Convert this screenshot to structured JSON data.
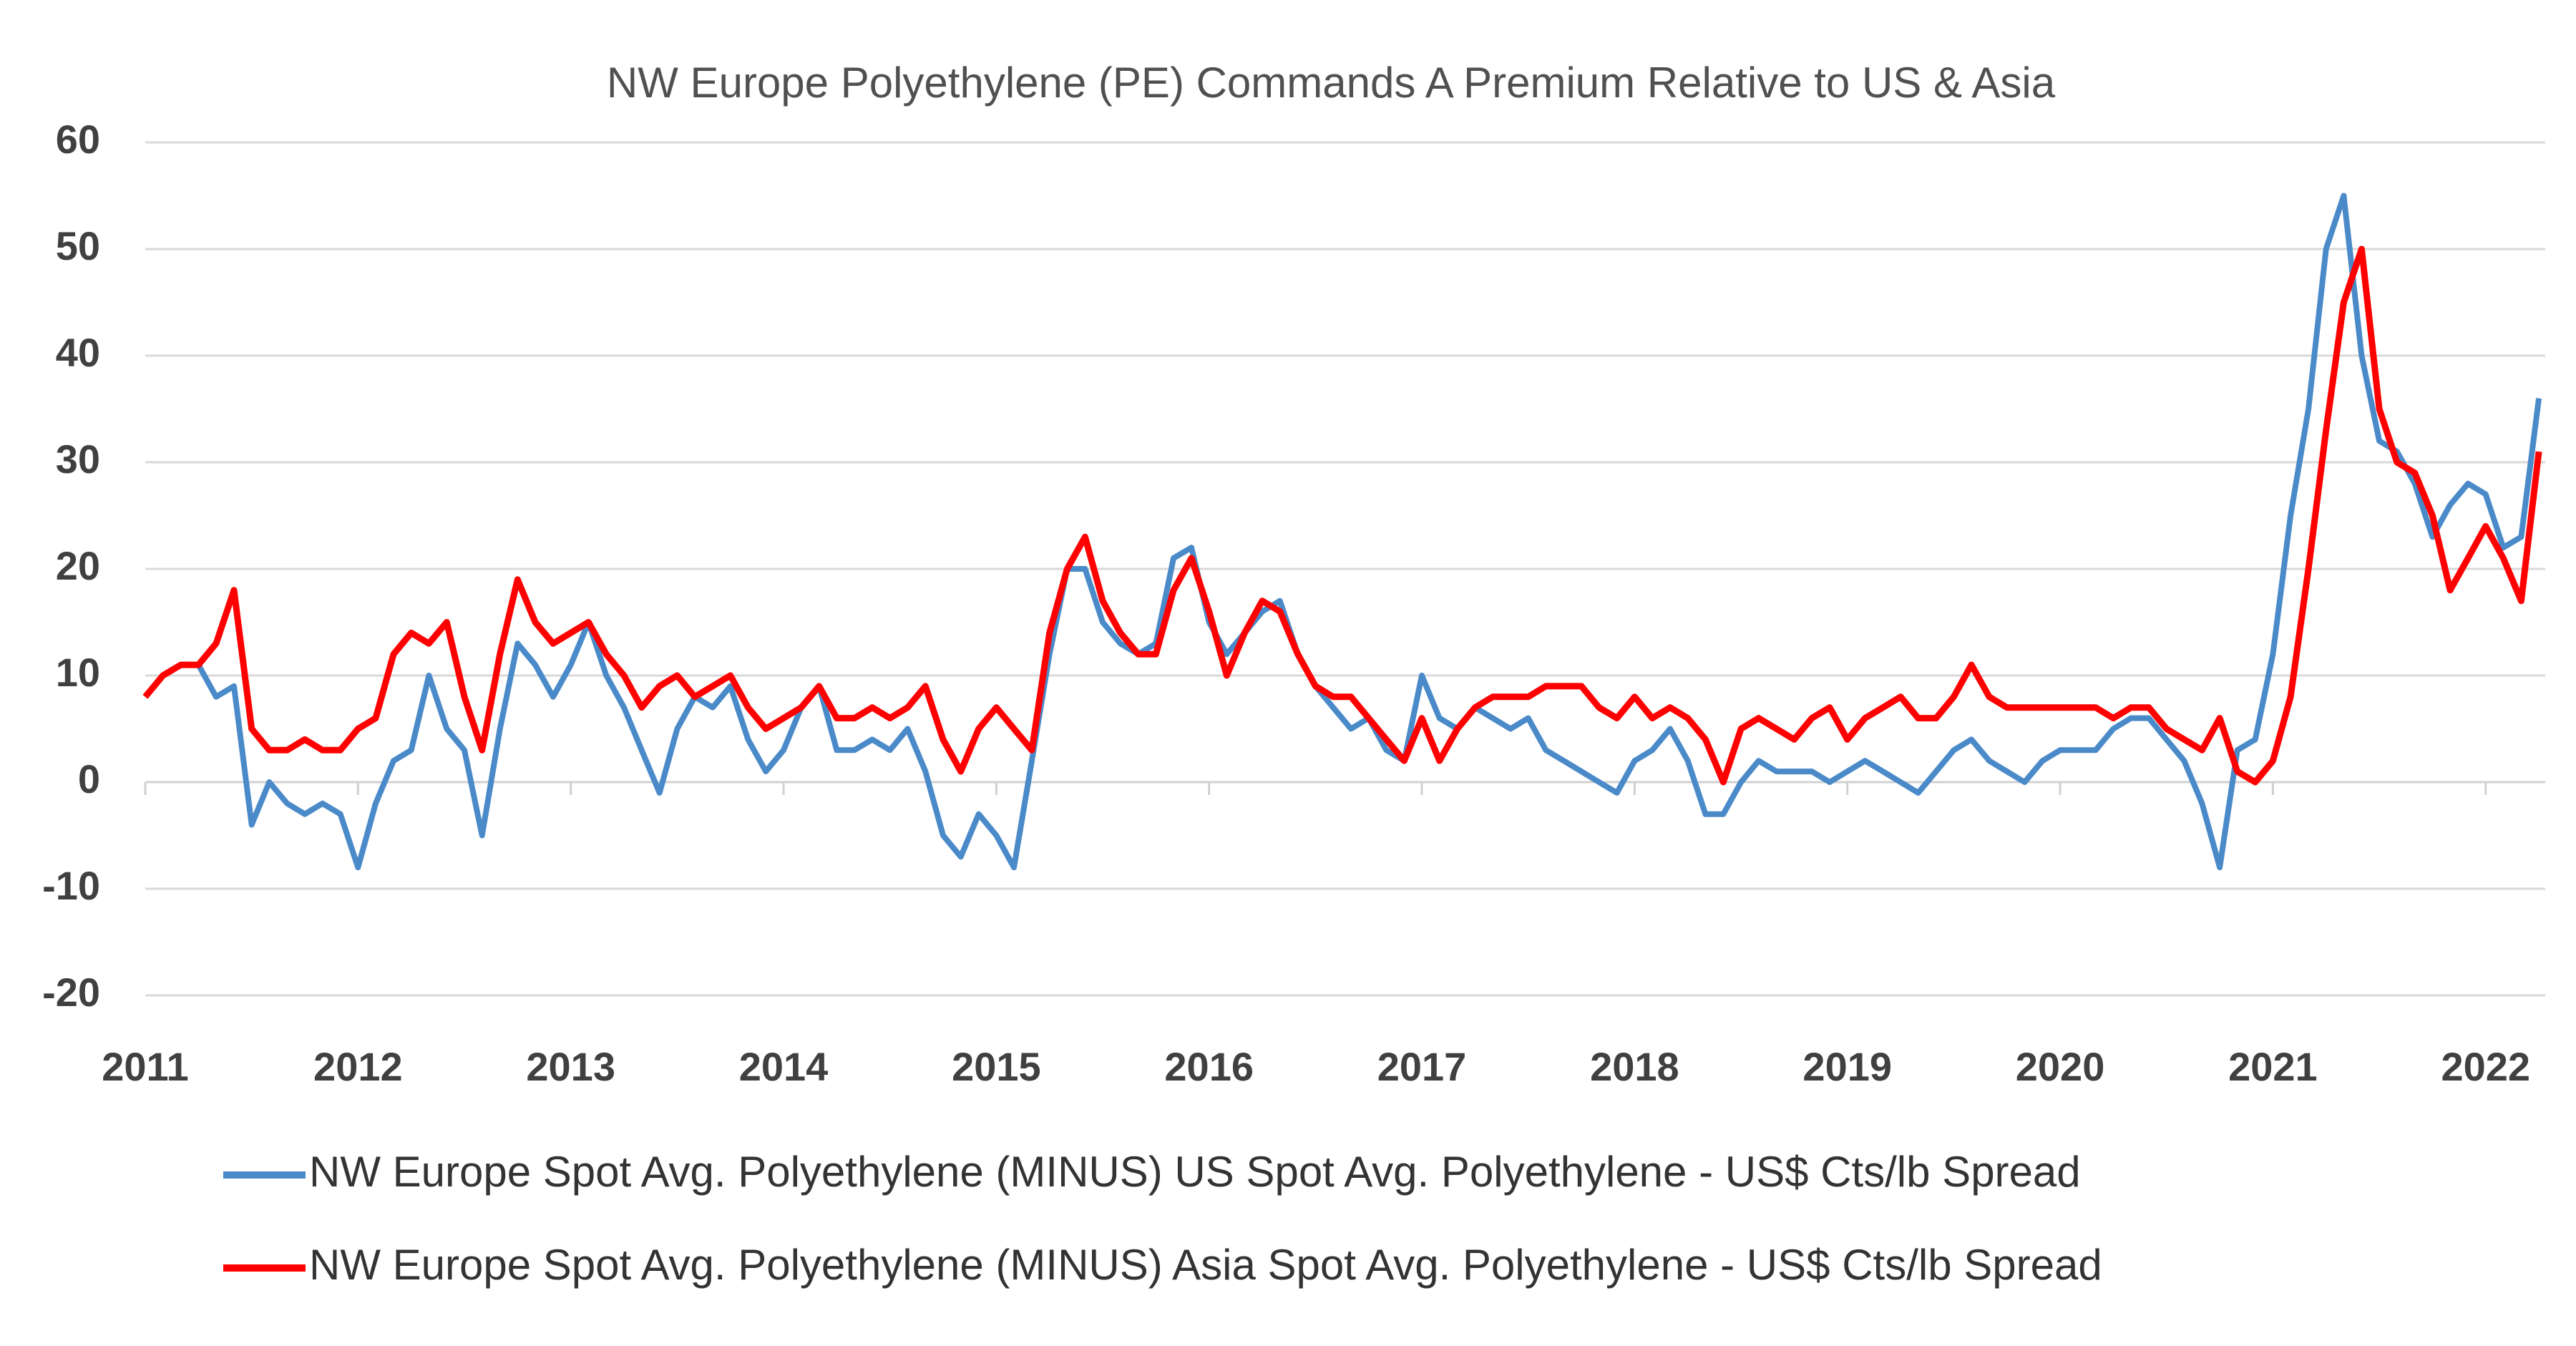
{
  "chart_data": {
    "type": "line",
    "title": "NW Europe Polyethylene (PE) Commands A Premium Relative to US & Asia",
    "x": [
      2011,
      2011.083,
      2011.167,
      2011.25,
      2011.333,
      2011.417,
      2011.5,
      2011.583,
      2011.667,
      2011.75,
      2011.833,
      2011.917,
      2012,
      2012.083,
      2012.167,
      2012.25,
      2012.333,
      2012.417,
      2012.5,
      2012.583,
      2012.667,
      2012.75,
      2012.833,
      2012.917,
      2013,
      2013.083,
      2013.167,
      2013.25,
      2013.333,
      2013.417,
      2013.5,
      2013.583,
      2013.667,
      2013.75,
      2013.833,
      2013.917,
      2014,
      2014.083,
      2014.167,
      2014.25,
      2014.333,
      2014.417,
      2014.5,
      2014.583,
      2014.667,
      2014.75,
      2014.833,
      2014.917,
      2015,
      2015.083,
      2015.167,
      2015.25,
      2015.333,
      2015.417,
      2015.5,
      2015.583,
      2015.667,
      2015.75,
      2015.833,
      2015.917,
      2016,
      2016.083,
      2016.167,
      2016.25,
      2016.333,
      2016.417,
      2016.5,
      2016.583,
      2016.667,
      2016.75,
      2016.833,
      2016.917,
      2017,
      2017.083,
      2017.167,
      2017.25,
      2017.333,
      2017.417,
      2017.5,
      2017.583,
      2017.667,
      2017.75,
      2017.833,
      2017.917,
      2018,
      2018.083,
      2018.167,
      2018.25,
      2018.333,
      2018.417,
      2018.5,
      2018.583,
      2018.667,
      2018.75,
      2018.833,
      2018.917,
      2019,
      2019.083,
      2019.167,
      2019.25,
      2019.333,
      2019.417,
      2019.5,
      2019.583,
      2019.667,
      2019.75,
      2019.833,
      2019.917,
      2020,
      2020.083,
      2020.167,
      2020.25,
      2020.333,
      2020.417,
      2020.5,
      2020.583,
      2020.667,
      2020.75,
      2020.833,
      2020.917,
      2021,
      2021.083,
      2021.167,
      2021.25,
      2021.333,
      2021.417,
      2021.5,
      2021.583,
      2021.667,
      2021.75,
      2021.833,
      2021.917,
      2022,
      2022.083,
      2022.167,
      2022.25
    ],
    "series": [
      {
        "name": "NW Europe Spot Avg. Polyethylene (MINUS) US Spot Avg. Polyethylene - US$ Cts/lb Spread",
        "color": "#4a8ac9",
        "values": [
          8,
          10,
          11,
          11,
          8,
          9,
          -4,
          0,
          -2,
          -3,
          -2,
          -3,
          -8,
          -2,
          2,
          3,
          10,
          5,
          3,
          -5,
          5,
          13,
          11,
          8,
          11,
          15,
          10,
          7,
          3,
          -1,
          5,
          8,
          7,
          9,
          4,
          1,
          3,
          7,
          9,
          3,
          3,
          4,
          3,
          5,
          1,
          -5,
          -7,
          -3,
          -5,
          -8,
          2,
          12,
          20,
          20,
          15,
          13,
          12,
          13,
          21,
          22,
          15,
          12,
          14,
          16,
          17,
          12,
          9,
          7,
          5,
          6,
          3,
          2,
          10,
          6,
          5,
          7,
          6,
          5,
          6,
          3,
          2,
          1,
          0,
          -1,
          2,
          3,
          5,
          2,
          -3,
          -3,
          0,
          2,
          1,
          1,
          1,
          0,
          1,
          2,
          1,
          0,
          -1,
          1,
          3,
          4,
          2,
          1,
          0,
          2,
          3,
          3,
          3,
          5,
          6,
          6,
          4,
          2,
          -2,
          -8,
          3,
          4,
          12,
          25,
          35,
          50,
          55,
          40,
          32,
          31,
          28,
          23,
          26,
          28,
          27,
          22,
          23,
          36
        ]
      },
      {
        "name": "NW Europe Spot Avg. Polyethylene (MINUS) Asia Spot Avg. Polyethylene - US$ Cts/lb Spread",
        "color": "#ff0000",
        "values": [
          8,
          10,
          11,
          11,
          13,
          18,
          5,
          3,
          3,
          4,
          3,
          3,
          5,
          6,
          12,
          14,
          13,
          15,
          8,
          3,
          12,
          19,
          15,
          13,
          14,
          15,
          12,
          10,
          7,
          9,
          10,
          8,
          9,
          10,
          7,
          5,
          6,
          7,
          9,
          6,
          6,
          7,
          6,
          7,
          9,
          4,
          1,
          5,
          7,
          5,
          3,
          14,
          20,
          23,
          17,
          14,
          12,
          12,
          18,
          21,
          16,
          10,
          14,
          17,
          16,
          12,
          9,
          8,
          8,
          6,
          4,
          2,
          6,
          2,
          5,
          7,
          8,
          8,
          8,
          9,
          9,
          9,
          7,
          6,
          8,
          6,
          7,
          6,
          4,
          0,
          5,
          6,
          5,
          4,
          6,
          7,
          4,
          6,
          7,
          8,
          6,
          6,
          8,
          11,
          8,
          7,
          7,
          7,
          7,
          7,
          7,
          6,
          7,
          7,
          5,
          4,
          3,
          6,
          1,
          0,
          2,
          8,
          20,
          33,
          45,
          50,
          35,
          30,
          29,
          25,
          18,
          21,
          24,
          21,
          17,
          31
        ]
      }
    ],
    "xlim": [
      2011,
      2022.28
    ],
    "xticks": [
      2011,
      2012,
      2013,
      2014,
      2015,
      2016,
      2017,
      2018,
      2019,
      2020,
      2021,
      2022
    ],
    "ylim": [
      -20,
      60
    ],
    "yticks": [
      -20,
      -10,
      0,
      10,
      20,
      30,
      40,
      50,
      60
    ],
    "grid": true
  }
}
